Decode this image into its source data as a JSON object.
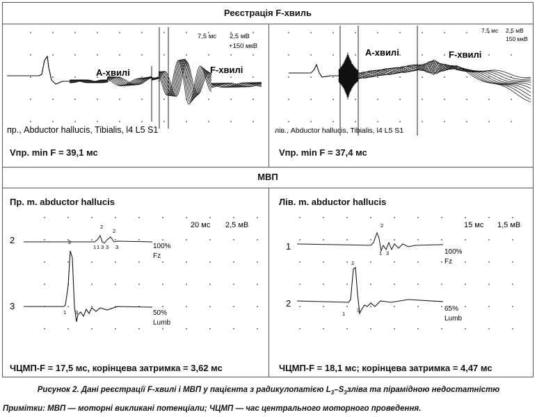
{
  "section_fwaves": {
    "title": "Реєстрація F-хвиль"
  },
  "panel_f_left": {
    "scale_time": "7,5 мс",
    "scale_amp": "2,5 мВ",
    "scale_amp2": "150 мкВ",
    "label_a": "А-хвилі",
    "label_f": "F-хвилі",
    "muscle_label": "пр., Abductor hallucis, Tibialis, l4 L5 S1",
    "result": "Vпр. min F = 39,1 мс"
  },
  "panel_f_right": {
    "scale_time": "7,5 мс",
    "scale_amp": "2,5 мВ",
    "scale_amp2": "150 мкВ",
    "label_a": "А-хвилі",
    "label_f": "F-хвилі",
    "muscle_label": "лів., Abductor hallucis, Tibialis, l4 L5 S1",
    "result": "Vпр. min F = 37,4 мс"
  },
  "section_mep": {
    "title": "МВП"
  },
  "panel_mep_left": {
    "title": "Пр. m. abductor hallucis",
    "scale_time": "20 мс",
    "scale_amp": "2,5 мВ",
    "trace1_label": "2",
    "trace1_percent": "100%",
    "trace1_site": "Fz",
    "trace2_label": "3",
    "trace2_percent": "50%",
    "trace2_site": "Lumb",
    "result": "ЧЦМП-F = 17,5 мс, корінцева затримка = 3,62 мс"
  },
  "panel_mep_right": {
    "title": "Лів. m. abductor hallucis",
    "scale_time": "15 мс",
    "scale_amp": "1,5 мВ",
    "trace1_label": "1",
    "trace1_percent": "100%",
    "trace1_site": "Fz",
    "trace2_label": "2",
    "trace2_percent": "65%",
    "trace2_site": "Lumb",
    "result": "ЧЦМП-F = 18,1 мс; корінцева затримка = 4,47 мс"
  },
  "marker_labels": {
    "one": "1",
    "two": "2",
    "three": "3"
  },
  "caption": "Рисунок 2. Дані реєстрації F-хвилі і МВП у пацієнта з радикулопатією L3–S3 зліва та пірамідною недостатністю",
  "note": "Примітки: МВП — моторні викликані потенціали; ЧЦМП — час центрального моторного проведення."
}
